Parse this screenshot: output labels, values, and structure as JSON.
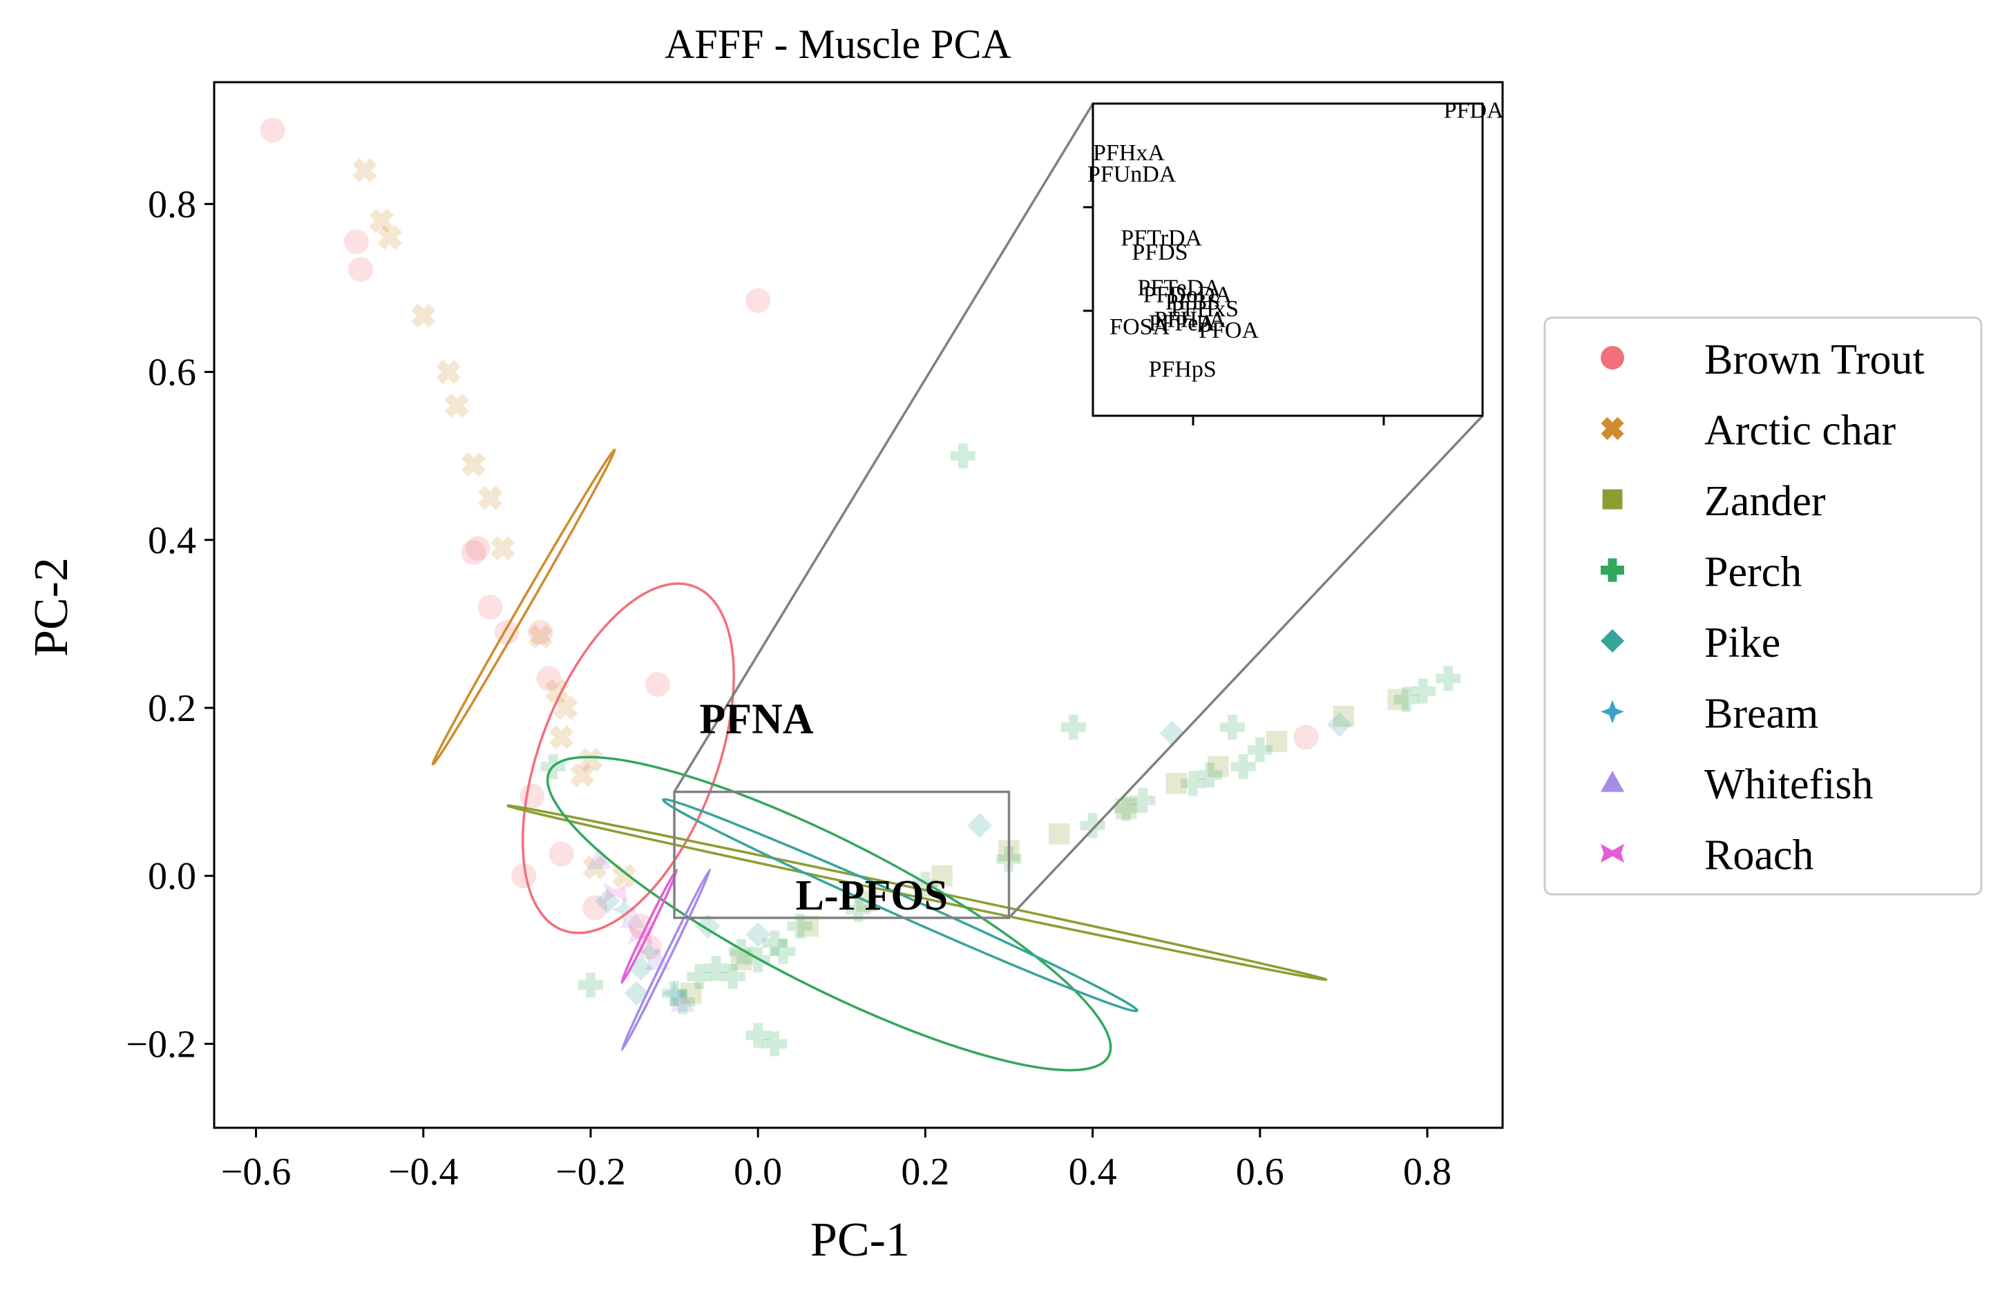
{
  "chart_data": {
    "type": "scatter",
    "title": "AFFF - Muscle PCA",
    "xlabel": "PC-1",
    "ylabel": "PC-2",
    "xlim": [
      -0.65,
      0.89
    ],
    "ylim": [
      -0.3,
      0.945
    ],
    "xticks": [
      -0.6,
      -0.4,
      -0.2,
      0.0,
      0.2,
      0.4,
      0.6,
      0.8
    ],
    "yticks": [
      -0.2,
      0.0,
      0.2,
      0.4,
      0.6,
      0.8
    ],
    "xtick_labels": [
      "−0.6",
      "−0.4",
      "−0.2",
      "0.0",
      "0.2",
      "0.4",
      "0.6",
      "0.8"
    ],
    "ytick_labels": [
      "−0.2",
      "0.0",
      "0.2",
      "0.4",
      "0.6",
      "0.8"
    ],
    "grid": false,
    "legend_position": "outside-right",
    "series": [
      {
        "name": "Brown Trout",
        "color": "#f1707a",
        "marker": "circle",
        "points": [
          [
            -0.58,
            0.888
          ],
          [
            -0.48,
            0.755
          ],
          [
            -0.475,
            0.722
          ],
          [
            0.0,
            0.685
          ],
          [
            -0.34,
            0.385
          ],
          [
            -0.335,
            0.39
          ],
          [
            -0.32,
            0.32
          ],
          [
            -0.3,
            0.29
          ],
          [
            -0.26,
            0.29
          ],
          [
            -0.25,
            0.235
          ],
          [
            -0.12,
            0.228
          ],
          [
            -0.27,
            0.095
          ],
          [
            -0.235,
            0.026
          ],
          [
            -0.28,
            0.0
          ],
          [
            -0.195,
            -0.038
          ],
          [
            -0.14,
            -0.06
          ],
          [
            -0.13,
            -0.085
          ],
          [
            0.655,
            0.165
          ]
        ]
      },
      {
        "name": "Arctic char",
        "color": "#cf8c2e",
        "marker": "x",
        "points": [
          [
            -0.47,
            0.84
          ],
          [
            -0.45,
            0.78
          ],
          [
            -0.44,
            0.76
          ],
          [
            -0.4,
            0.667
          ],
          [
            -0.37,
            0.6
          ],
          [
            -0.36,
            0.56
          ],
          [
            -0.34,
            0.49
          ],
          [
            -0.32,
            0.45
          ],
          [
            -0.305,
            0.39
          ],
          [
            -0.26,
            0.285
          ],
          [
            -0.24,
            0.22
          ],
          [
            -0.23,
            0.2
          ],
          [
            -0.235,
            0.165
          ],
          [
            -0.2,
            0.138
          ],
          [
            -0.21,
            0.12
          ],
          [
            -0.195,
            0.01
          ],
          [
            -0.16,
            0.0
          ]
        ]
      },
      {
        "name": "Zander",
        "color": "#8c9d32",
        "marker": "square",
        "points": [
          [
            0.765,
            0.21
          ],
          [
            0.7,
            0.19
          ],
          [
            0.62,
            0.16
          ],
          [
            0.55,
            0.13
          ],
          [
            0.5,
            0.11
          ],
          [
            0.44,
            0.08
          ],
          [
            0.36,
            0.05
          ],
          [
            0.3,
            0.03
          ],
          [
            0.22,
            0.0
          ],
          [
            0.13,
            -0.03
          ],
          [
            0.06,
            -0.06
          ],
          [
            -0.02,
            -0.1
          ],
          [
            -0.08,
            -0.14
          ]
        ]
      },
      {
        "name": "Perch",
        "color": "#33a75b",
        "marker": "plus",
        "points": [
          [
            0.245,
            0.5
          ],
          [
            0.825,
            0.235
          ],
          [
            0.795,
            0.22
          ],
          [
            0.775,
            0.21
          ],
          [
            0.567,
            0.177
          ],
          [
            0.377,
            0.177
          ],
          [
            0.6,
            0.15
          ],
          [
            0.58,
            0.13
          ],
          [
            0.54,
            0.12
          ],
          [
            0.52,
            0.11
          ],
          [
            0.46,
            0.09
          ],
          [
            0.44,
            0.08
          ],
          [
            0.4,
            0.06
          ],
          [
            0.3,
            0.02
          ],
          [
            0.2,
            -0.01
          ],
          [
            0.12,
            -0.04
          ],
          [
            0.05,
            -0.06
          ],
          [
            0.02,
            -0.08
          ],
          [
            -0.02,
            -0.09
          ],
          [
            -0.05,
            -0.11
          ],
          [
            -0.07,
            -0.12
          ],
          [
            -0.1,
            -0.14
          ],
          [
            -0.2,
            -0.13
          ],
          [
            -0.245,
            0.13
          ],
          [
            -0.09,
            -0.15
          ],
          [
            0.0,
            -0.19
          ],
          [
            0.02,
            -0.2
          ],
          [
            0.0,
            -0.1
          ],
          [
            -0.03,
            -0.12
          ],
          [
            0.03,
            -0.09
          ]
        ]
      },
      {
        "name": "Pike",
        "color": "#36a59a",
        "marker": "diamond",
        "points": [
          [
            0.695,
            0.18
          ],
          [
            0.495,
            0.17
          ],
          [
            0.265,
            0.06
          ],
          [
            -0.14,
            -0.11
          ],
          [
            -0.145,
            -0.14
          ],
          [
            -0.06,
            -0.06
          ],
          [
            -0.18,
            -0.03
          ],
          [
            0.0,
            -0.07
          ]
        ]
      },
      {
        "name": "Bream",
        "color": "#3aa1c9",
        "marker": "star4",
        "points": [
          [
            -0.16,
            -0.04
          ],
          [
            -0.13,
            -0.09
          ],
          [
            -0.1,
            -0.14
          ]
        ]
      },
      {
        "name": "Whitefish",
        "color": "#a68bea",
        "marker": "triangle",
        "points": [
          [
            -0.19,
            0.02
          ],
          [
            -0.15,
            -0.05
          ],
          [
            -0.12,
            -0.1
          ],
          [
            -0.09,
            -0.15
          ]
        ]
      },
      {
        "name": "Roach",
        "color": "#e25ed5",
        "marker": "bowtie",
        "points": [
          [
            -0.17,
            -0.02
          ],
          [
            -0.14,
            -0.07
          ]
        ]
      }
    ],
    "ellipses": [
      {
        "series": "Brown Trout",
        "color": "#f1707a",
        "cx": -0.155,
        "cy": 0.14,
        "rx": 0.22,
        "ry": 0.105,
        "angle_deg": -69
      },
      {
        "series": "Arctic char",
        "color": "#cf8c2e",
        "cx": -0.28,
        "cy": 0.32,
        "rx": 0.217,
        "ry": 0.0052,
        "angle_deg": -60
      },
      {
        "series": "Zander",
        "color": "#8c9d32",
        "cx": 0.19,
        "cy": -0.02,
        "rx": 0.5,
        "ry": 0.005,
        "angle_deg": 12
      },
      {
        "series": "Perch",
        "color": "#33a75b",
        "cx": 0.085,
        "cy": -0.045,
        "rx": 0.375,
        "ry": 0.087,
        "angle_deg": 27
      },
      {
        "series": "Pike",
        "color": "#36a59a",
        "cx": 0.17,
        "cy": -0.035,
        "rx": 0.31,
        "ry": 0.012,
        "angle_deg": 24
      },
      {
        "series": "Whitefish",
        "color": "#a68bea",
        "cx": -0.11,
        "cy": -0.1,
        "rx": 0.12,
        "ry": 0.003,
        "angle_deg": -64
      },
      {
        "series": "Roach",
        "color": "#e25ed5",
        "cx": -0.13,
        "cy": -0.06,
        "rx": 0.075,
        "ry": 0.003,
        "angle_deg": -64
      }
    ],
    "annotations": [
      {
        "text": "PFNA",
        "x": -0.07,
        "y": 0.17
      },
      {
        "text": "L-PFOS",
        "x": 0.045,
        "y": -0.04
      }
    ],
    "zoom_box": {
      "xlim": [
        -0.1,
        0.3
      ],
      "ylim": [
        -0.05,
        0.1
      ]
    },
    "inset": {
      "xlim": [
        -0.15,
        0.55
      ],
      "ylim": [
        -0.12,
        0.32
      ],
      "labels": [
        {
          "text": "PFDA",
          "x": 0.48,
          "y": 0.3
        },
        {
          "text": "PFHxA",
          "x": -0.15,
          "y": 0.24
        },
        {
          "text": "PFUnDA",
          "x": -0.16,
          "y": 0.21
        },
        {
          "text": "PFTrDA",
          "x": -0.1,
          "y": 0.12
        },
        {
          "text": "PFDS",
          "x": -0.08,
          "y": 0.1
        },
        {
          "text": "PFTeDA",
          "x": -0.07,
          "y": 0.05
        },
        {
          "text": "PFDoDA",
          "x": -0.06,
          "y": 0.04
        },
        {
          "text": "PFBS",
          "x": -0.02,
          "y": 0.03
        },
        {
          "text": "PFHxS",
          "x": -0.01,
          "y": 0.02
        },
        {
          "text": "PFOA",
          "x": 0.04,
          "y": -0.01
        },
        {
          "text": "FOSA",
          "x": -0.12,
          "y": -0.005
        },
        {
          "text": "PFPeA",
          "x": -0.05,
          "y": 0.0
        },
        {
          "text": "PFHpA",
          "x": -0.04,
          "y": 0.005
        },
        {
          "text": "PFHpS",
          "x": -0.05,
          "y": -0.065
        }
      ]
    }
  }
}
